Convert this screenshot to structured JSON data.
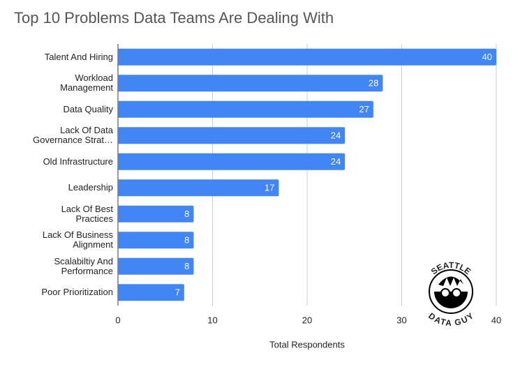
{
  "chart_data": {
    "type": "bar",
    "orientation": "horizontal",
    "title": "Top 10 Problems Data Teams Are Dealing With",
    "x_label": "Total Respondents",
    "categories": [
      "Talent And Hiring",
      "Workload\nManagement",
      "Data Quality",
      "Lack Of Data\nGovernance Strat…",
      "Old Infrastructure",
      "Leadership",
      "Lack Of Best\nPractices",
      "Lack Of Business\nAlignment",
      "Scalabiltiy And\nPerformance",
      "Poor Prioritization"
    ],
    "values": [
      40,
      28,
      27,
      24,
      24,
      17,
      8,
      8,
      8,
      7
    ],
    "color": "#4285f4",
    "xlim": [
      0,
      40
    ],
    "xticks": [
      0,
      10,
      20,
      30,
      40
    ],
    "grid": true,
    "logo": {
      "top": "SEATTLE",
      "bottom": "DATA GUY"
    }
  }
}
